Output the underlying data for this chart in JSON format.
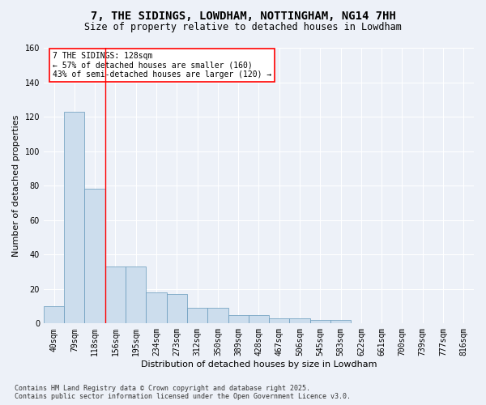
{
  "title": "7, THE SIDINGS, LOWDHAM, NOTTINGHAM, NG14 7HH",
  "subtitle": "Size of property relative to detached houses in Lowdham",
  "xlabel": "Distribution of detached houses by size in Lowdham",
  "ylabel": "Number of detached properties",
  "bar_color": "#ccdded",
  "bar_edge_color": "#6699bb",
  "categories": [
    "40sqm",
    "79sqm",
    "118sqm",
    "156sqm",
    "195sqm",
    "234sqm",
    "273sqm",
    "312sqm",
    "350sqm",
    "389sqm",
    "428sqm",
    "467sqm",
    "506sqm",
    "545sqm",
    "583sqm",
    "622sqm",
    "661sqm",
    "700sqm",
    "739sqm",
    "777sqm",
    "816sqm"
  ],
  "values": [
    10,
    123,
    78,
    33,
    33,
    18,
    17,
    9,
    9,
    5,
    5,
    3,
    3,
    2,
    2,
    0,
    0,
    0,
    0,
    0,
    0
  ],
  "ylim": [
    0,
    160
  ],
  "yticks": [
    0,
    20,
    40,
    60,
    80,
    100,
    120,
    140,
    160
  ],
  "red_line_x": 2.5,
  "annotation_title": "7 THE SIDINGS: 128sqm",
  "annotation_line1": "← 57% of detached houses are smaller (160)",
  "annotation_line2": "43% of semi-detached houses are larger (120) →",
  "footer1": "Contains HM Land Registry data © Crown copyright and database right 2025.",
  "footer2": "Contains public sector information licensed under the Open Government Licence v3.0.",
  "background_color": "#edf1f8",
  "plot_bg_color": "#edf1f8",
  "grid_color": "#ffffff",
  "title_fontsize": 10,
  "subtitle_fontsize": 8.5,
  "axis_label_fontsize": 8,
  "tick_fontsize": 7,
  "annotation_fontsize": 7,
  "footer_fontsize": 6
}
